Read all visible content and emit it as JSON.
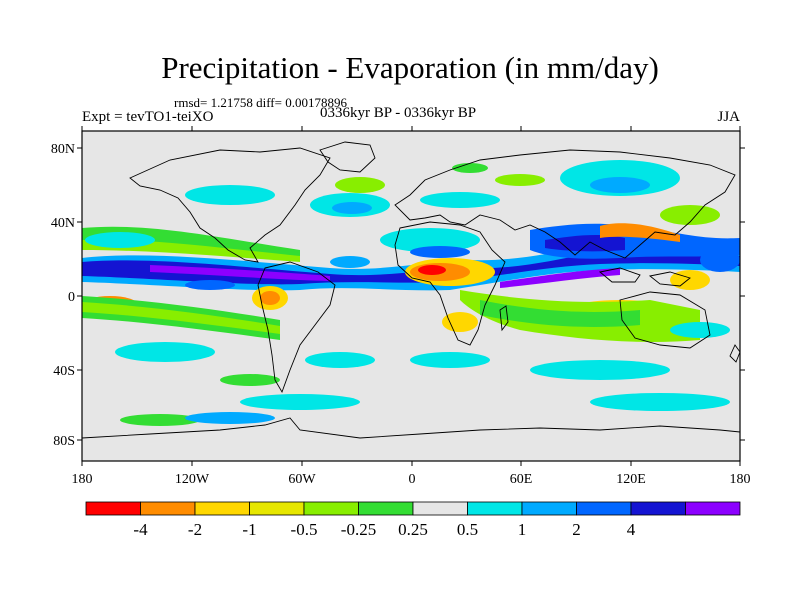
{
  "title": "Precipitation - Evaporation (in mm/day)",
  "stats": "rmsd= 1.21758 diff= 0.00178896",
  "experiment": "Expt = tevTO1-teiXO",
  "period": "0336kyr BP - 0336kyr BP",
  "season": "JJA",
  "lat_ticks": [
    "80N",
    "40N",
    "0",
    "40S",
    "80S"
  ],
  "lon_ticks": [
    "180",
    "120W",
    "60W",
    "0",
    "60E",
    "120E",
    "180"
  ],
  "colorbar": {
    "colors": [
      "#ff0000",
      "#ff8c00",
      "#ffd700",
      "#e6e600",
      "#88ee00",
      "#33dd33",
      "#e6e6e6",
      "#00e6e6",
      "#00aaff",
      "#0066ff",
      "#1414d2",
      "#8c00ff"
    ],
    "labels": [
      "-4",
      "-2",
      "-1",
      "-0.5",
      "-0.25",
      "0.25",
      "0.5",
      "1",
      "2",
      "4"
    ]
  },
  "background_color": "#e6e6e6"
}
